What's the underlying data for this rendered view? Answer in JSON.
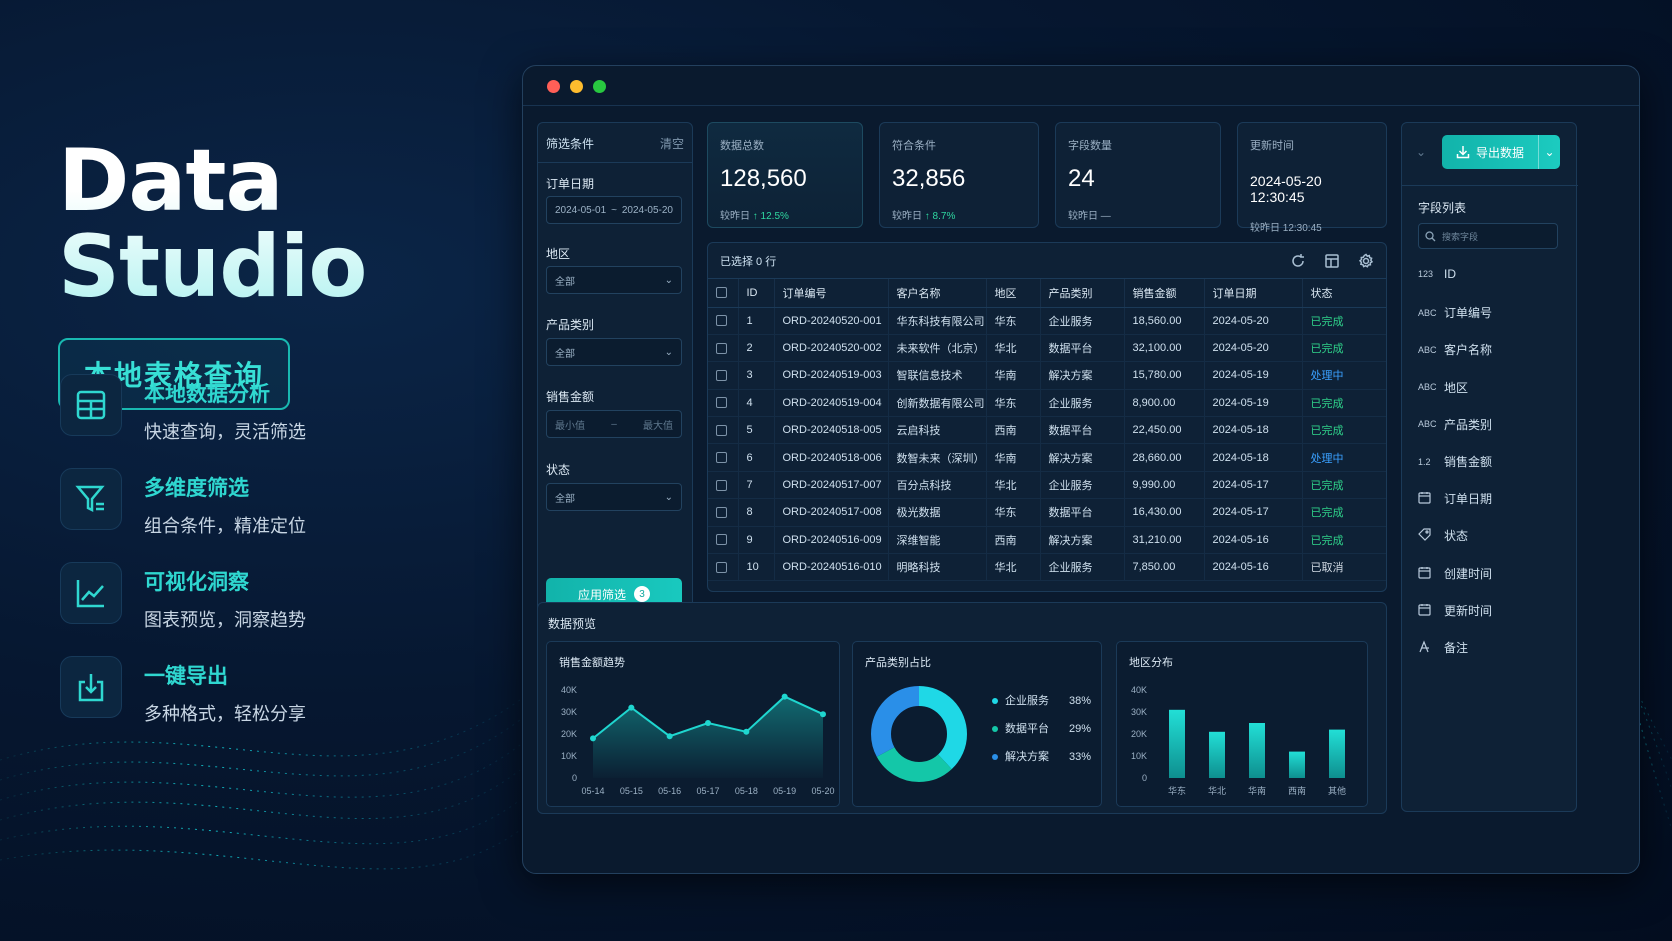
{
  "hero": {
    "title": "Data Studio",
    "badge": "本地表格查询",
    "features": [
      {
        "icon": "table-grid-icon",
        "title": "本地数据分析",
        "subtitle": "快速查询，灵活筛选"
      },
      {
        "icon": "filter-icon",
        "title": "多维度筛选",
        "subtitle": "组合条件，精准定位"
      },
      {
        "icon": "line-chart-icon",
        "title": "可视化洞察",
        "subtitle": "图表预览，洞察趋势"
      },
      {
        "icon": "export-icon",
        "title": "一键导出",
        "subtitle": "多种格式，轻松分享"
      }
    ]
  },
  "colors": {
    "accent": "#19c9bf",
    "done": "#2fd18a",
    "processing": "#3aa0ff",
    "bg": "#061730"
  },
  "filter": {
    "title": "筛选条件",
    "clear": "清空",
    "date_label": "订单日期",
    "date_start": "2024-05-01",
    "date_sep": "~",
    "date_end": "2024-05-20",
    "region_label": "地区",
    "region_value": "全部",
    "category_label": "产品类别",
    "category_value": "全部",
    "amount_label": "销售金额",
    "amount_min_placeholder": "最小值",
    "amount_sep": "–",
    "amount_max_placeholder": "最大值",
    "status_label": "状态",
    "status_value": "全部",
    "apply_label": "应用筛选",
    "apply_count": "3"
  },
  "stats": [
    {
      "label": "数据总数",
      "value": "128,560",
      "cmp_label": "较昨日",
      "cmp_value": "↑ 12.5%"
    },
    {
      "label": "符合条件",
      "value": "32,856",
      "cmp_label": "较昨日",
      "cmp_value": "↑ 8.7%"
    },
    {
      "label": "字段数量",
      "value": "24",
      "cmp_label": "较昨日",
      "cmp_value": "—"
    },
    {
      "label": "更新时间",
      "value": "2024-05-20 12:30:45",
      "cmp_label": "较昨日",
      "cmp_value": "12:30:45"
    }
  ],
  "table": {
    "selected": "已选择 0 行",
    "headers": [
      "ID",
      "订单编号",
      "客户名称",
      "地区",
      "产品类别",
      "销售金额",
      "订单日期",
      "状态"
    ],
    "rows": [
      [
        "1",
        "ORD-20240520-001",
        "华东科技有限公司",
        "华东",
        "企业服务",
        "18,560.00",
        "2024-05-20",
        "已完成"
      ],
      [
        "2",
        "ORD-20240520-002",
        "未来软件（北京）",
        "华北",
        "数据平台",
        "32,100.00",
        "2024-05-20",
        "已完成"
      ],
      [
        "3",
        "ORD-20240519-003",
        "智联信息技术",
        "华南",
        "解决方案",
        "15,780.00",
        "2024-05-19",
        "处理中"
      ],
      [
        "4",
        "ORD-20240519-004",
        "创新数据有限公司",
        "华东",
        "企业服务",
        "8,900.00",
        "2024-05-19",
        "已完成"
      ],
      [
        "5",
        "ORD-20240518-005",
        "云启科技",
        "西南",
        "数据平台",
        "22,450.00",
        "2024-05-18",
        "已完成"
      ],
      [
        "6",
        "ORD-20240518-006",
        "数智未来（深圳）",
        "华南",
        "解决方案",
        "28,660.00",
        "2024-05-18",
        "处理中"
      ],
      [
        "7",
        "ORD-20240517-007",
        "百分点科技",
        "华北",
        "企业服务",
        "9,990.00",
        "2024-05-17",
        "已完成"
      ],
      [
        "8",
        "ORD-20240517-008",
        "极光数据",
        "华东",
        "数据平台",
        "16,430.00",
        "2024-05-17",
        "已完成"
      ],
      [
        "9",
        "ORD-20240516-009",
        "深维智能",
        "西南",
        "解决方案",
        "31,210.00",
        "2024-05-16",
        "已完成"
      ],
      [
        "10",
        "ORD-20240516-010",
        "明略科技",
        "华北",
        "企业服务",
        "7,850.00",
        "2024-05-16",
        "已取消"
      ]
    ]
  },
  "preview": {
    "title": "数据预览"
  },
  "chart_data": [
    {
      "type": "area",
      "title": "销售金额趋势",
      "x": [
        "05-14",
        "05-15",
        "05-16",
        "05-17",
        "05-18",
        "05-19",
        "05-20"
      ],
      "values": [
        18000,
        32000,
        19000,
        25000,
        21000,
        37000,
        29000
      ],
      "ylim": [
        0,
        40000
      ],
      "yticks": [
        "40K",
        "30K",
        "20K",
        "10K",
        "0"
      ],
      "grid": false
    },
    {
      "type": "pie",
      "title": "产品类别占比",
      "categories": [
        "企业服务",
        "数据平台",
        "解决方案"
      ],
      "values": [
        38,
        29,
        33
      ],
      "labels": [
        "38%",
        "29%",
        "33%"
      ],
      "colors": [
        "#1fd8e6",
        "#14c7a8",
        "#2a8fe8"
      ],
      "legend": "right"
    },
    {
      "type": "bar",
      "title": "地区分布",
      "categories": [
        "华东",
        "华北",
        "华南",
        "西南",
        "其他"
      ],
      "values": [
        31000,
        21000,
        25000,
        12000,
        22000
      ],
      "ylim": [
        0,
        40000
      ],
      "yticks": [
        "40K",
        "30K",
        "20K",
        "10K",
        "0"
      ]
    }
  ],
  "right": {
    "export_label": "导出数据",
    "fields_title": "字段列表",
    "search_placeholder": "搜索字段",
    "fields": [
      {
        "type": "123",
        "name": "ID"
      },
      {
        "type": "ABC",
        "name": "订单编号"
      },
      {
        "type": "ABC",
        "name": "客户名称"
      },
      {
        "type": "ABC",
        "name": "地区"
      },
      {
        "type": "ABC",
        "name": "产品类别"
      },
      {
        "type": "1.2",
        "name": "销售金额"
      },
      {
        "type": "calendar-icon",
        "name": "订单日期"
      },
      {
        "type": "tag-icon",
        "name": "状态"
      },
      {
        "type": "calendar-icon",
        "name": "创建时间"
      },
      {
        "type": "calendar-icon",
        "name": "更新时间"
      },
      {
        "type": "note-icon",
        "name": "备注"
      }
    ]
  }
}
